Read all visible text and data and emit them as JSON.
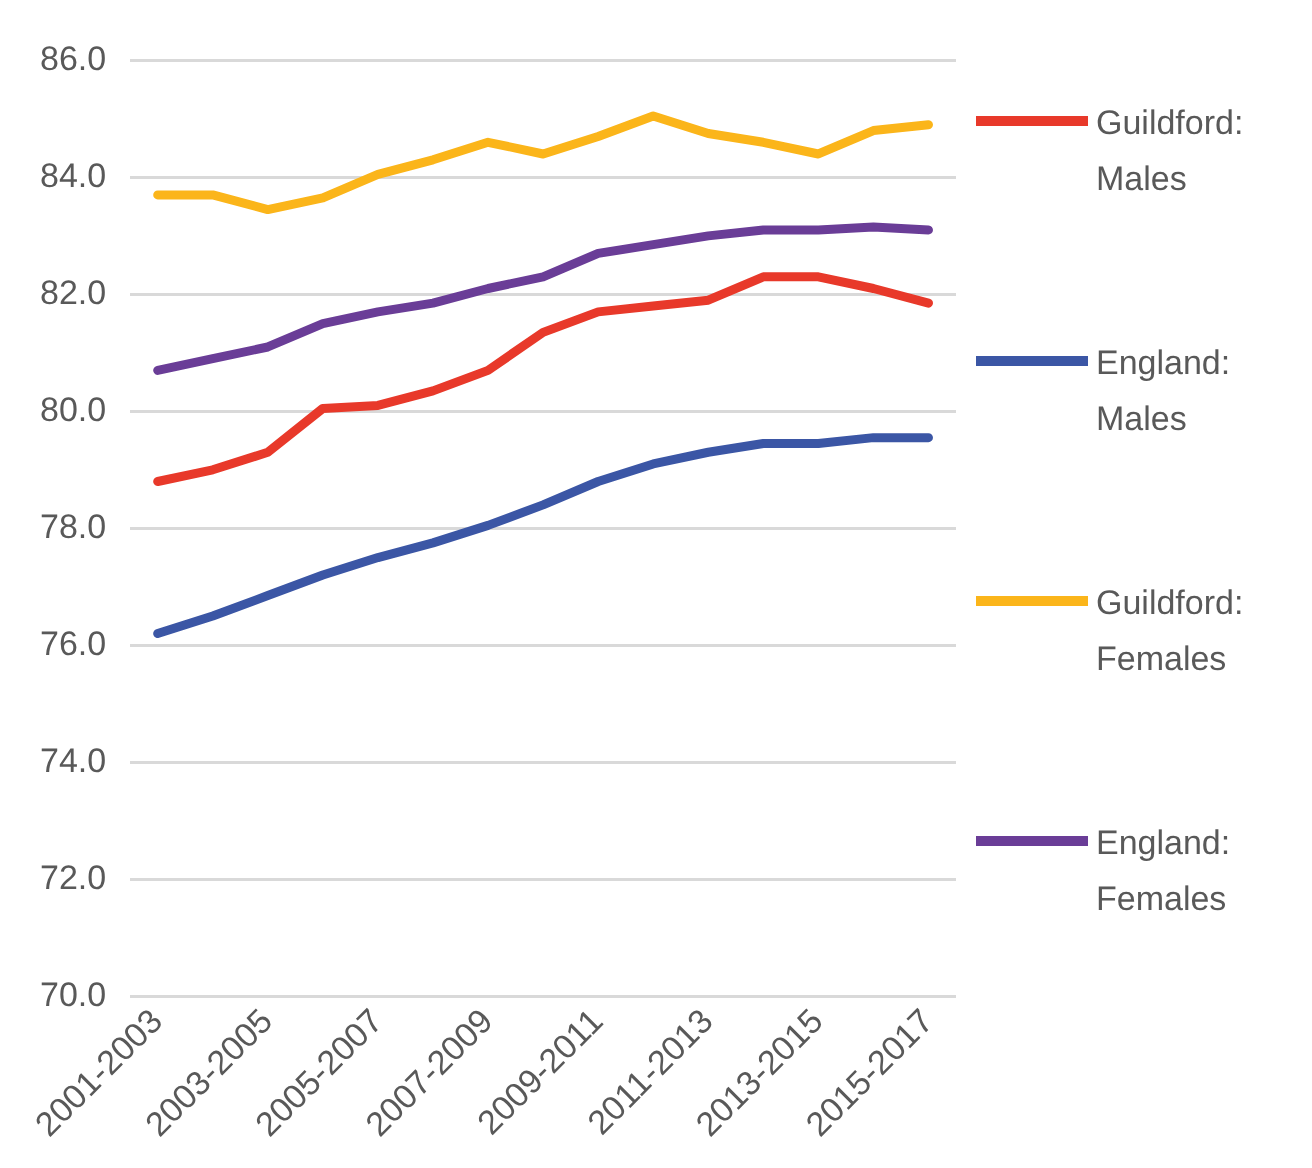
{
  "chart_data": {
    "type": "line",
    "categories": [
      "2001-2003",
      null,
      "2003-2005",
      null,
      "2005-2007",
      null,
      "2007-2009",
      null,
      "2009-2011",
      null,
      "2011-2013",
      null,
      "2013-2015",
      null,
      "2015-2017"
    ],
    "series": [
      {
        "name": "Guildford: Males",
        "color": "#e8392a",
        "values": [
          78.8,
          79.0,
          79.3,
          80.05,
          80.1,
          80.35,
          80.7,
          81.35,
          81.7,
          81.8,
          81.9,
          82.3,
          82.3,
          82.1,
          81.85
        ]
      },
      {
        "name": "England: Males",
        "color": "#3b56a5",
        "values": [
          76.2,
          76.5,
          76.85,
          77.2,
          77.5,
          77.75,
          78.05,
          78.4,
          78.8,
          79.1,
          79.3,
          79.45,
          79.45,
          79.55,
          79.55
        ]
      },
      {
        "name": "Guildford: Females",
        "color": "#fbb51a",
        "values": [
          83.7,
          83.7,
          83.45,
          83.65,
          84.05,
          84.3,
          84.6,
          84.4,
          84.7,
          85.05,
          84.75,
          84.6,
          84.4,
          84.8,
          84.9
        ]
      },
      {
        "name": "England: Females",
        "color": "#6a3d97",
        "values": [
          80.7,
          80.9,
          81.1,
          81.5,
          81.7,
          81.85,
          82.1,
          82.3,
          82.7,
          82.85,
          83.0,
          83.1,
          83.1,
          83.15,
          83.1
        ]
      }
    ],
    "ylim": [
      70,
      86
    ],
    "yticks": [
      {
        "value": 70,
        "label": "70.0"
      },
      {
        "value": 72,
        "label": "72.0"
      },
      {
        "value": 74,
        "label": "74.0"
      },
      {
        "value": 76,
        "label": "76.0"
      },
      {
        "value": 78,
        "label": "78.0"
      },
      {
        "value": 80,
        "label": "80.0"
      },
      {
        "value": 82,
        "label": "82.0"
      },
      {
        "value": 84,
        "label": "84.0"
      },
      {
        "value": 86,
        "label": "86.0"
      }
    ],
    "grid": "y",
    "legend": "right",
    "marker": "none",
    "line_style": "solid"
  }
}
